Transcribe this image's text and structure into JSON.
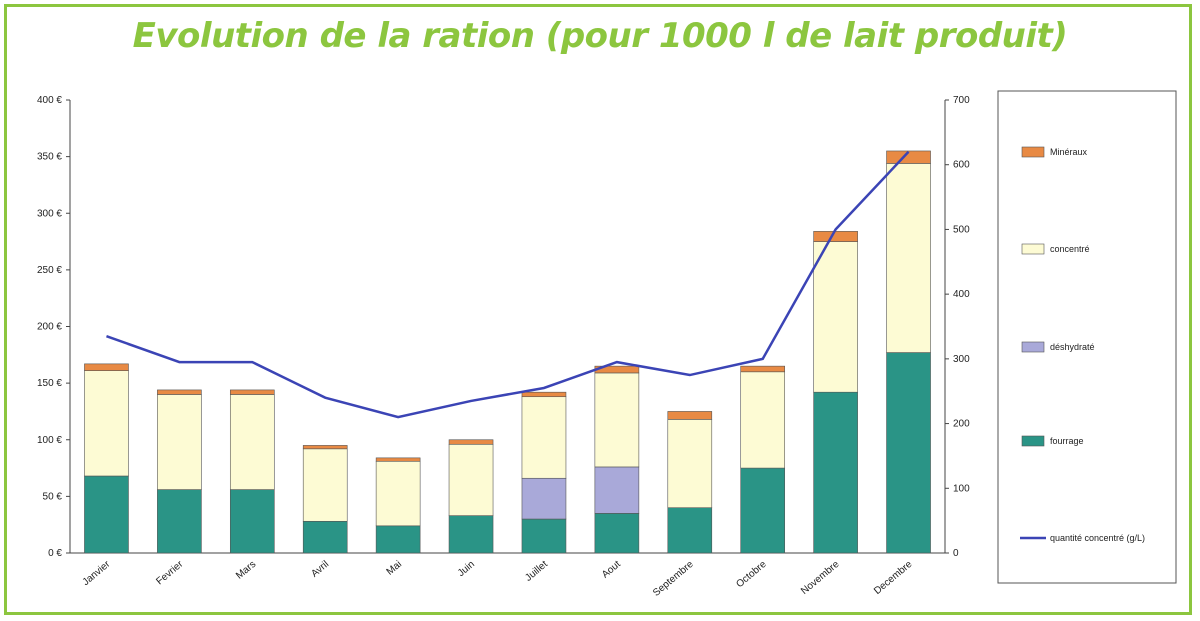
{
  "title": "Evolution de la ration (pour 1000 l de lait produit)",
  "colors": {
    "frame": "#8cc63f",
    "title": "#8cc63f",
    "fourrage": "#2a9486",
    "deshydrate": "#a9a9d9",
    "concentre": "#fdfbd4",
    "mineraux": "#e88a44",
    "line": "#3b44b5"
  },
  "chart_data": {
    "type": "bar",
    "stacked": true,
    "categories": [
      "Janvier",
      "Fevrier",
      "Mars",
      "Avril",
      "Mai",
      "Juin",
      "Juillet",
      "Aout",
      "Septembre",
      "Octobre",
      "Novembre",
      "Decembre"
    ],
    "series": [
      {
        "name": "fourrage",
        "values": [
          68,
          56,
          56,
          28,
          24,
          33,
          30,
          35,
          40,
          75,
          142,
          177
        ]
      },
      {
        "name": "déshydraté",
        "values": [
          0,
          0,
          0,
          0,
          0,
          0,
          36,
          41,
          0,
          0,
          0,
          0
        ]
      },
      {
        "name": "concentré",
        "values": [
          93,
          84,
          84,
          64,
          57,
          63,
          72,
          83,
          78,
          85,
          133,
          167
        ]
      },
      {
        "name": "minéraux",
        "values": [
          6,
          4,
          4,
          3,
          3,
          4,
          4,
          6,
          7,
          5,
          9,
          11
        ]
      }
    ],
    "line_series": {
      "name": "quantité concentré (g/L)",
      "axis": "right",
      "values": [
        335,
        295,
        295,
        240,
        210,
        235,
        255,
        295,
        275,
        300,
        500,
        620
      ]
    },
    "y_left": {
      "ylim": [
        0,
        400
      ],
      "ticks": [
        "0 €",
        "50 €",
        "100 €",
        "150 €",
        "200 €",
        "250 €",
        "300 €",
        "350 €",
        "400 €"
      ]
    },
    "y_right": {
      "ylim": [
        0,
        700
      ],
      "ticks": [
        "0",
        "100",
        "200",
        "300",
        "400",
        "500",
        "600",
        "700"
      ]
    },
    "legend": {
      "position": "right",
      "entries": [
        {
          "label": "Minéraux",
          "series": "minéraux"
        },
        {
          "label": "concentré",
          "series": "concentré"
        },
        {
          "label": "déshydraté",
          "series": "déshydraté"
        },
        {
          "label": "fourrage",
          "series": "fourrage"
        },
        {
          "label": "quantité concentré (g/L)",
          "series": "line"
        }
      ]
    },
    "grid": false
  }
}
